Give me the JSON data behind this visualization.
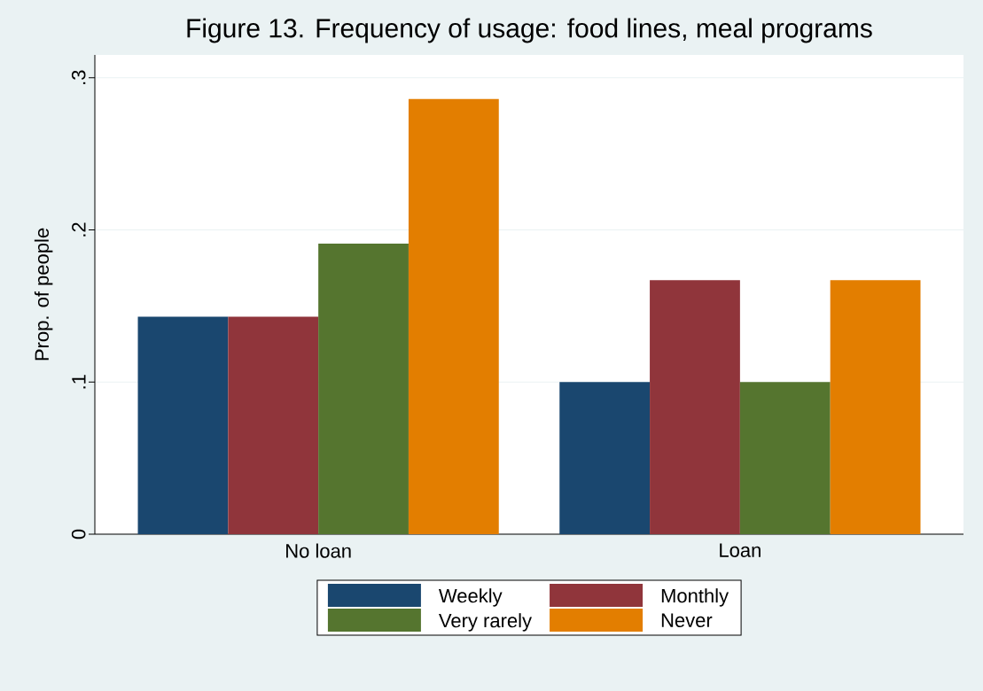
{
  "chart_data": {
    "type": "bar",
    "title": "Figure 13. Frequency of usage: food lines, meal programs",
    "ylabel": "Prop. of people",
    "categories": [
      "No loan",
      "Loan"
    ],
    "series": [
      {
        "name": "Weekly",
        "color": "#1a476f",
        "values": [
          0.143,
          0.1
        ]
      },
      {
        "name": "Monthly",
        "color": "#90353b",
        "values": [
          0.143,
          0.167
        ]
      },
      {
        "name": "Very rarely",
        "color": "#55752f",
        "values": [
          0.191,
          0.1
        ]
      },
      {
        "name": "Never",
        "color": "#e37e00",
        "values": [
          0.286,
          0.167
        ]
      }
    ],
    "ylim": [
      0,
      0.315
    ],
    "yticks": [
      0,
      {
        "value": 0.1,
        "label": ".1"
      },
      {
        "value": 0.2,
        "label": ".2"
      },
      {
        "value": 0.3,
        "label": ".3"
      }
    ],
    "grid": "y",
    "legend": "bottom"
  }
}
